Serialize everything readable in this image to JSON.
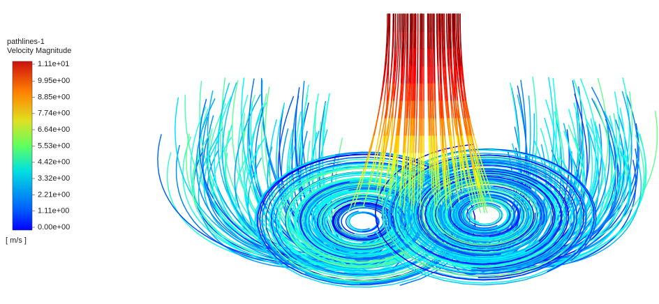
{
  "legend": {
    "title": "pathlines-1",
    "quantity": "Velocity Magnitude",
    "unit": "[ m/s ]",
    "ticks": [
      {
        "value": 11.1,
        "label": "1.11e+01"
      },
      {
        "value": 9.95,
        "label": "9.95e+00"
      },
      {
        "value": 8.85,
        "label": "8.85e+00"
      },
      {
        "value": 7.74,
        "label": "7.74e+00"
      },
      {
        "value": 6.64,
        "label": "6.64e+00"
      },
      {
        "value": 5.53,
        "label": "5.53e+00"
      },
      {
        "value": 4.42,
        "label": "4.42e+00"
      },
      {
        "value": 3.32,
        "label": "3.32e+00"
      },
      {
        "value": 2.21,
        "label": "2.21e+00"
      },
      {
        "value": 1.11,
        "label": "1.11e+00"
      },
      {
        "value": 0,
        "label": "0.00e+00"
      }
    ]
  }
}
